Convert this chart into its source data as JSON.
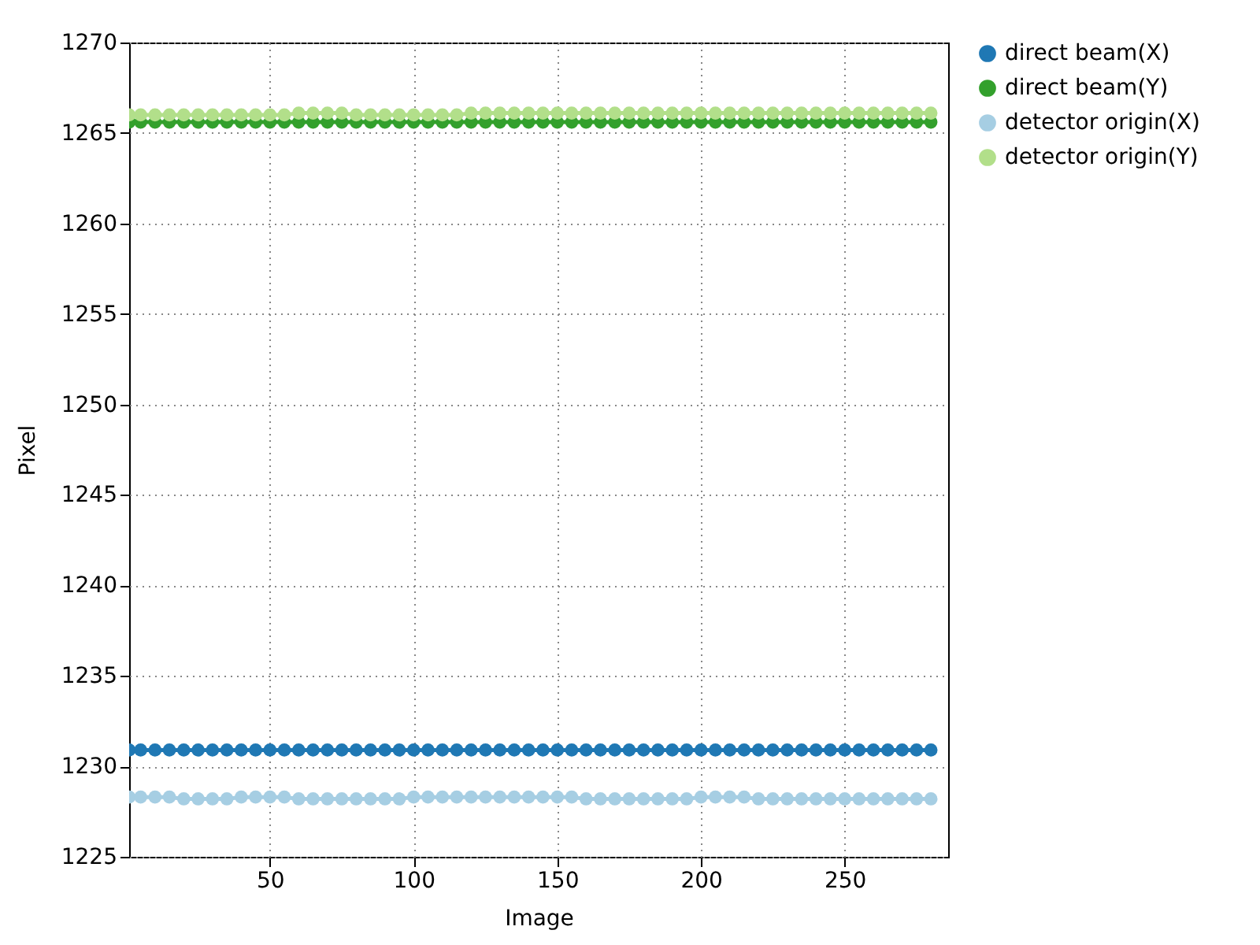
{
  "chart_data": {
    "type": "line",
    "xlabel": "Image",
    "ylabel": "Pixel",
    "x": [
      1,
      5,
      10,
      15,
      20,
      25,
      30,
      35,
      40,
      45,
      50,
      55,
      60,
      65,
      70,
      75,
      80,
      85,
      90,
      95,
      100,
      105,
      110,
      115,
      120,
      125,
      130,
      135,
      140,
      145,
      150,
      155,
      160,
      165,
      170,
      175,
      180,
      185,
      190,
      195,
      200,
      205,
      210,
      215,
      220,
      225,
      230,
      235,
      240,
      245,
      250,
      255,
      260,
      265,
      270,
      275,
      280
    ],
    "series": [
      {
        "name": "direct beam(X)",
        "color": "#1f78b4",
        "values": [
          1230.9,
          1230.9,
          1230.9,
          1230.9,
          1230.9,
          1230.9,
          1230.9,
          1230.9,
          1230.9,
          1230.9,
          1230.9,
          1230.9,
          1230.9,
          1230.9,
          1230.9,
          1230.9,
          1230.9,
          1230.9,
          1230.9,
          1230.9,
          1230.9,
          1230.9,
          1230.9,
          1230.9,
          1230.9,
          1230.9,
          1230.9,
          1230.9,
          1230.9,
          1230.9,
          1230.9,
          1230.9,
          1230.9,
          1230.9,
          1230.9,
          1230.9,
          1230.9,
          1230.9,
          1230.9,
          1230.9,
          1230.9,
          1230.9,
          1230.9,
          1230.9,
          1230.9,
          1230.9,
          1230.9,
          1230.9,
          1230.9,
          1230.9,
          1230.9,
          1230.9,
          1230.9,
          1230.9,
          1230.9,
          1230.9,
          1230.9
        ]
      },
      {
        "name": "direct beam(Y)",
        "color": "#33a02c",
        "values": [
          1265.6,
          1265.6,
          1265.6,
          1265.6,
          1265.6,
          1265.6,
          1265.6,
          1265.6,
          1265.6,
          1265.6,
          1265.6,
          1265.6,
          1265.6,
          1265.6,
          1265.6,
          1265.6,
          1265.6,
          1265.6,
          1265.6,
          1265.6,
          1265.6,
          1265.6,
          1265.6,
          1265.6,
          1265.6,
          1265.6,
          1265.6,
          1265.6,
          1265.6,
          1265.6,
          1265.6,
          1265.6,
          1265.6,
          1265.6,
          1265.6,
          1265.6,
          1265.6,
          1265.6,
          1265.6,
          1265.6,
          1265.6,
          1265.6,
          1265.6,
          1265.6,
          1265.6,
          1265.6,
          1265.6,
          1265.6,
          1265.6,
          1265.6,
          1265.6,
          1265.6,
          1265.6,
          1265.6,
          1265.6,
          1265.6,
          1265.6
        ]
      },
      {
        "name": "detector origin(X)",
        "color": "#a6cee3",
        "values": [
          1228.3,
          1228.3,
          1228.3,
          1228.3,
          1228.2,
          1228.2,
          1228.2,
          1228.2,
          1228.3,
          1228.3,
          1228.3,
          1228.3,
          1228.2,
          1228.2,
          1228.2,
          1228.2,
          1228.2,
          1228.2,
          1228.2,
          1228.2,
          1228.3,
          1228.3,
          1228.3,
          1228.3,
          1228.3,
          1228.3,
          1228.3,
          1228.3,
          1228.3,
          1228.3,
          1228.3,
          1228.3,
          1228.2,
          1228.2,
          1228.2,
          1228.2,
          1228.2,
          1228.2,
          1228.2,
          1228.2,
          1228.3,
          1228.3,
          1228.3,
          1228.3,
          1228.2,
          1228.2,
          1228.2,
          1228.2,
          1228.2,
          1228.2,
          1228.2,
          1228.2,
          1228.2,
          1228.2,
          1228.2,
          1228.2,
          1228.2
        ]
      },
      {
        "name": "detector origin(Y)",
        "color": "#b2df8a",
        "values": [
          1266.0,
          1266.0,
          1266.0,
          1266.0,
          1266.0,
          1266.0,
          1266.0,
          1266.0,
          1266.0,
          1266.0,
          1266.0,
          1266.0,
          1266.1,
          1266.1,
          1266.1,
          1266.1,
          1266.0,
          1266.0,
          1266.0,
          1266.0,
          1266.0,
          1266.0,
          1266.0,
          1266.0,
          1266.1,
          1266.1,
          1266.1,
          1266.1,
          1266.1,
          1266.1,
          1266.1,
          1266.1,
          1266.1,
          1266.1,
          1266.1,
          1266.1,
          1266.1,
          1266.1,
          1266.1,
          1266.1,
          1266.1,
          1266.1,
          1266.1,
          1266.1,
          1266.1,
          1266.1,
          1266.1,
          1266.1,
          1266.1,
          1266.1,
          1266.1,
          1266.1,
          1266.1,
          1266.1,
          1266.1,
          1266.1,
          1266.1
        ]
      }
    ],
    "xlim": [
      1,
      286
    ],
    "xticks": [
      50,
      100,
      150,
      200,
      250
    ],
    "ylim": [
      1225,
      1270
    ],
    "yticks": [
      1225,
      1230,
      1235,
      1240,
      1245,
      1250,
      1255,
      1260,
      1265,
      1270
    ],
    "grid": true,
    "legend": "top right",
    "marker": "circle",
    "line_style": "solid"
  }
}
